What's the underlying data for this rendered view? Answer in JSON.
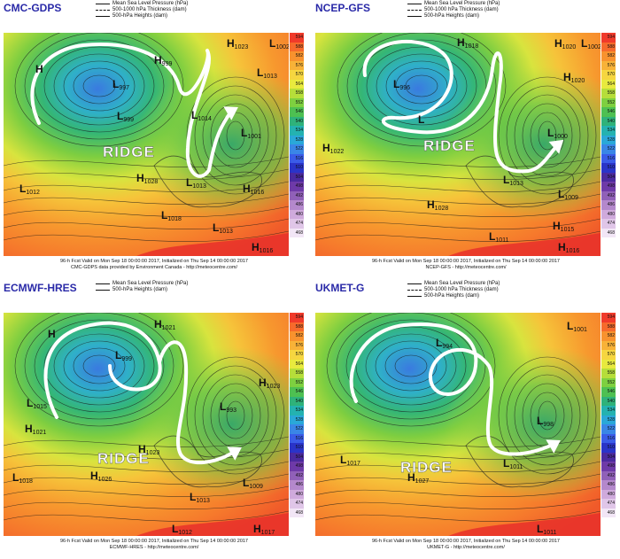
{
  "legend": {
    "mslp": "Mean Sea Level Pressure (hPa)",
    "thickness": "500-1000 hPa Thickness (dam)",
    "heights": "500-hPa Heights (dam)"
  },
  "colorbar": {
    "ticks": [
      "594",
      "588",
      "582",
      "576",
      "570",
      "564",
      "558",
      "552",
      "546",
      "540",
      "534",
      "528",
      "522",
      "516",
      "510",
      "504",
      "498",
      "492",
      "486",
      "480",
      "474",
      "468"
    ],
    "colors": [
      "#f03a2a",
      "#f66a2c",
      "#f8922e",
      "#f8b238",
      "#f6d640",
      "#e8ea3e",
      "#b6de3a",
      "#7ed040",
      "#4ec052",
      "#2fb27a",
      "#24b2b0",
      "#2aa8d8",
      "#3a86e6",
      "#3a5ce8",
      "#2a34c8",
      "#4a2a9e",
      "#6e3aa8",
      "#9060b8",
      "#b488cc",
      "#cfaadc",
      "#e0c6e8",
      "#f2e6f6"
    ]
  },
  "ridge_label": "RIDGE",
  "panels": [
    {
      "model": "CMC-GDPS",
      "show_thickness": true,
      "footer_line1": "96-h Fcst Valid on Mon Sep 18 00:00:00 2017, Initialized on Thu Sep 14 00:00:00 2017",
      "footer_line2": "CMC-GDPS data provided by Environment Canada - http://meteocentre.com/",
      "labels": [
        {
          "t": "H",
          "n": ""
        },
        {
          "t": "L",
          "n": "997"
        },
        {
          "t": "L",
          "n": "999"
        },
        {
          "t": "L",
          "n": "1002"
        },
        {
          "t": "H",
          "n": "1023"
        },
        {
          "t": "L",
          "n": "1013"
        },
        {
          "t": "L",
          "n": "1014"
        },
        {
          "t": "L",
          "n": "1001"
        },
        {
          "t": "L",
          "n": "1012"
        },
        {
          "t": "H",
          "n": "1028"
        },
        {
          "t": "L",
          "n": "1013"
        },
        {
          "t": "H",
          "n": "1016"
        },
        {
          "t": "L",
          "n": "1018"
        },
        {
          "t": "L",
          "n": "1013"
        },
        {
          "t": "H",
          "n": "1016"
        },
        {
          "t": "H",
          "n": "999"
        }
      ]
    },
    {
      "model": "NCEP-GFS",
      "show_thickness": true,
      "footer_line1": "96-h Fcst Valid on Mon Sep 18 00:00:00 2017, Initialized on Thu Sep 14 00:00:00 2017",
      "footer_line2": "NCEP-GFS - http://meteocentre.com/",
      "labels": [
        {
          "t": "L",
          "n": "996"
        },
        {
          "t": "H",
          "n": "1018"
        },
        {
          "t": "H",
          "n": "1020"
        },
        {
          "t": "L",
          "n": "1002"
        },
        {
          "t": "H",
          "n": "1020"
        },
        {
          "t": "L",
          "n": ""
        },
        {
          "t": "L",
          "n": "1000"
        },
        {
          "t": "H",
          "n": "1022"
        },
        {
          "t": "H",
          "n": "1028"
        },
        {
          "t": "L",
          "n": "1013"
        },
        {
          "t": "L",
          "n": "1009"
        },
        {
          "t": "H",
          "n": "1015"
        },
        {
          "t": "L",
          "n": "1011"
        },
        {
          "t": "H",
          "n": "1016"
        }
      ]
    },
    {
      "model": "ECMWF-HRES",
      "show_thickness": false,
      "footer_line1": "96-h Fcst Valid on Mon Sep 18 00:00:00 2017, Initialized on Thu Sep 14 00:00:00 2017",
      "footer_line2": "ECMWF-HRES - http://meteocentre.com/",
      "labels": [
        {
          "t": "H",
          "n": ""
        },
        {
          "t": "L",
          "n": "999"
        },
        {
          "t": "H",
          "n": "1021"
        },
        {
          "t": "L",
          "n": "1015"
        },
        {
          "t": "H",
          "n": "1023"
        },
        {
          "t": "L",
          "n": "993"
        },
        {
          "t": "H",
          "n": "1021"
        },
        {
          "t": "H",
          "n": "1023"
        },
        {
          "t": "L",
          "n": "1018"
        },
        {
          "t": "H",
          "n": "1026"
        },
        {
          "t": "L",
          "n": "1013"
        },
        {
          "t": "L",
          "n": "1009"
        },
        {
          "t": "L",
          "n": "1012"
        },
        {
          "t": "H",
          "n": "1017"
        }
      ]
    },
    {
      "model": "UKMET-G",
      "show_thickness": true,
      "footer_line1": "96-h Fcst Valid on Mon Sep 18 00:00:00 2017, Initialized on Thu Sep 14 00:00:00 2017",
      "footer_line2": "UKMET-G - http://meteocentre.com/",
      "labels": [
        {
          "t": "L",
          "n": "1001"
        },
        {
          "t": "L",
          "n": "994"
        },
        {
          "t": "L",
          "n": "998"
        },
        {
          "t": "L",
          "n": "1017"
        },
        {
          "t": "L",
          "n": "1011"
        },
        {
          "t": "H",
          "n": "1027"
        },
        {
          "t": "L",
          "n": "1011"
        }
      ]
    }
  ]
}
